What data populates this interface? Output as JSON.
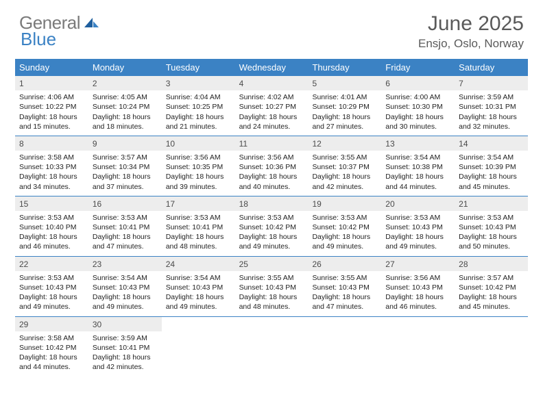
{
  "logo": {
    "general": "General",
    "blue": "Blue"
  },
  "title": "June 2025",
  "location": "Ensjo, Oslo, Norway",
  "colors": {
    "header_bg": "#3b82c4",
    "header_text": "#ffffff",
    "daynum_bg": "#ededed",
    "row_border": "#3b82c4",
    "title_color": "#5a5a5a",
    "logo_gray": "#7a7a7a",
    "logo_blue": "#3b82c4"
  },
  "day_headers": [
    "Sunday",
    "Monday",
    "Tuesday",
    "Wednesday",
    "Thursday",
    "Friday",
    "Saturday"
  ],
  "weeks": [
    [
      {
        "day": 1,
        "sunrise": "4:06 AM",
        "sunset": "10:22 PM",
        "daylight": "18 hours and 15 minutes."
      },
      {
        "day": 2,
        "sunrise": "4:05 AM",
        "sunset": "10:24 PM",
        "daylight": "18 hours and 18 minutes."
      },
      {
        "day": 3,
        "sunrise": "4:04 AM",
        "sunset": "10:25 PM",
        "daylight": "18 hours and 21 minutes."
      },
      {
        "day": 4,
        "sunrise": "4:02 AM",
        "sunset": "10:27 PM",
        "daylight": "18 hours and 24 minutes."
      },
      {
        "day": 5,
        "sunrise": "4:01 AM",
        "sunset": "10:29 PM",
        "daylight": "18 hours and 27 minutes."
      },
      {
        "day": 6,
        "sunrise": "4:00 AM",
        "sunset": "10:30 PM",
        "daylight": "18 hours and 30 minutes."
      },
      {
        "day": 7,
        "sunrise": "3:59 AM",
        "sunset": "10:31 PM",
        "daylight": "18 hours and 32 minutes."
      }
    ],
    [
      {
        "day": 8,
        "sunrise": "3:58 AM",
        "sunset": "10:33 PM",
        "daylight": "18 hours and 34 minutes."
      },
      {
        "day": 9,
        "sunrise": "3:57 AM",
        "sunset": "10:34 PM",
        "daylight": "18 hours and 37 minutes."
      },
      {
        "day": 10,
        "sunrise": "3:56 AM",
        "sunset": "10:35 PM",
        "daylight": "18 hours and 39 minutes."
      },
      {
        "day": 11,
        "sunrise": "3:56 AM",
        "sunset": "10:36 PM",
        "daylight": "18 hours and 40 minutes."
      },
      {
        "day": 12,
        "sunrise": "3:55 AM",
        "sunset": "10:37 PM",
        "daylight": "18 hours and 42 minutes."
      },
      {
        "day": 13,
        "sunrise": "3:54 AM",
        "sunset": "10:38 PM",
        "daylight": "18 hours and 44 minutes."
      },
      {
        "day": 14,
        "sunrise": "3:54 AM",
        "sunset": "10:39 PM",
        "daylight": "18 hours and 45 minutes."
      }
    ],
    [
      {
        "day": 15,
        "sunrise": "3:53 AM",
        "sunset": "10:40 PM",
        "daylight": "18 hours and 46 minutes."
      },
      {
        "day": 16,
        "sunrise": "3:53 AM",
        "sunset": "10:41 PM",
        "daylight": "18 hours and 47 minutes."
      },
      {
        "day": 17,
        "sunrise": "3:53 AM",
        "sunset": "10:41 PM",
        "daylight": "18 hours and 48 minutes."
      },
      {
        "day": 18,
        "sunrise": "3:53 AM",
        "sunset": "10:42 PM",
        "daylight": "18 hours and 49 minutes."
      },
      {
        "day": 19,
        "sunrise": "3:53 AM",
        "sunset": "10:42 PM",
        "daylight": "18 hours and 49 minutes."
      },
      {
        "day": 20,
        "sunrise": "3:53 AM",
        "sunset": "10:43 PM",
        "daylight": "18 hours and 49 minutes."
      },
      {
        "day": 21,
        "sunrise": "3:53 AM",
        "sunset": "10:43 PM",
        "daylight": "18 hours and 50 minutes."
      }
    ],
    [
      {
        "day": 22,
        "sunrise": "3:53 AM",
        "sunset": "10:43 PM",
        "daylight": "18 hours and 49 minutes."
      },
      {
        "day": 23,
        "sunrise": "3:54 AM",
        "sunset": "10:43 PM",
        "daylight": "18 hours and 49 minutes."
      },
      {
        "day": 24,
        "sunrise": "3:54 AM",
        "sunset": "10:43 PM",
        "daylight": "18 hours and 49 minutes."
      },
      {
        "day": 25,
        "sunrise": "3:55 AM",
        "sunset": "10:43 PM",
        "daylight": "18 hours and 48 minutes."
      },
      {
        "day": 26,
        "sunrise": "3:55 AM",
        "sunset": "10:43 PM",
        "daylight": "18 hours and 47 minutes."
      },
      {
        "day": 27,
        "sunrise": "3:56 AM",
        "sunset": "10:43 PM",
        "daylight": "18 hours and 46 minutes."
      },
      {
        "day": 28,
        "sunrise": "3:57 AM",
        "sunset": "10:42 PM",
        "daylight": "18 hours and 45 minutes."
      }
    ],
    [
      {
        "day": 29,
        "sunrise": "3:58 AM",
        "sunset": "10:42 PM",
        "daylight": "18 hours and 44 minutes."
      },
      {
        "day": 30,
        "sunrise": "3:59 AM",
        "sunset": "10:41 PM",
        "daylight": "18 hours and 42 minutes."
      },
      null,
      null,
      null,
      null,
      null
    ]
  ],
  "labels": {
    "sunrise_prefix": "Sunrise: ",
    "sunset_prefix": "Sunset: ",
    "daylight_prefix": "Daylight: "
  }
}
